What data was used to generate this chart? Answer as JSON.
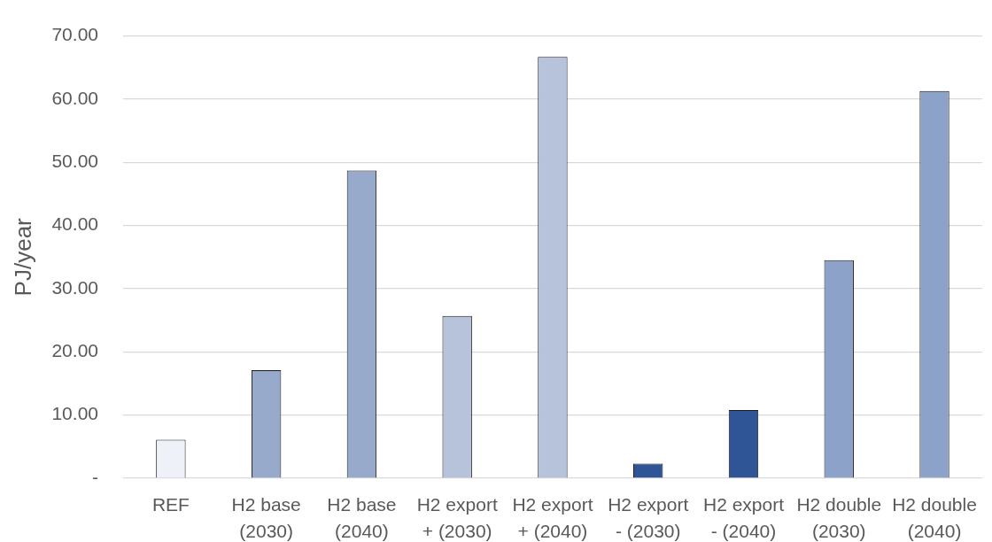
{
  "chart_data": {
    "type": "bar",
    "ylabel": "PJ/year",
    "categories": [
      "REF",
      "H2 base (2030)",
      "H2 base (2040)",
      "H2 export + (2030)",
      "H2 export + (2040)",
      "H2 export - (2030)",
      "H2 export - (2040)",
      "H2 double (2030)",
      "H2 double (2040)"
    ],
    "values": [
      6.1,
      17.1,
      48.7,
      25.7,
      66.7,
      2.3,
      10.8,
      34.5,
      61.3
    ],
    "colors": [
      "#eef2f8",
      "#97aacb",
      "#97aacb",
      "#b6c3db",
      "#b6c3db",
      "#2f5597",
      "#2f5597",
      "#8da2c8",
      "#8da2c8"
    ],
    "ylim": [
      0,
      70
    ],
    "yticks": [
      {
        "value": 0,
        "label": "-"
      },
      {
        "value": 10,
        "label": "10.00"
      },
      {
        "value": 20,
        "label": "20.00"
      },
      {
        "value": 30,
        "label": "30.00"
      },
      {
        "value": 40,
        "label": "40.00"
      },
      {
        "value": 50,
        "label": "50.00"
      },
      {
        "value": 60,
        "label": "60.00"
      },
      {
        "value": 70,
        "label": "70.00"
      }
    ],
    "grid": "y"
  }
}
